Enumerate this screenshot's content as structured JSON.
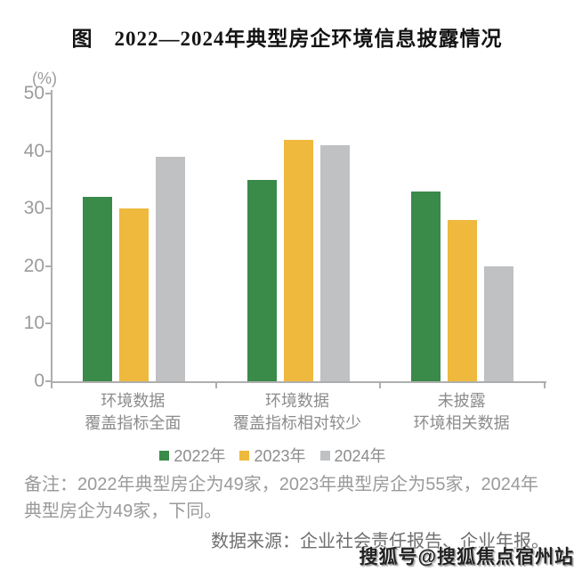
{
  "title": "图　2022—2024年典型房企环境信息披露情况",
  "chart_data": {
    "type": "bar",
    "title": "图　2022—2024年典型房企环境信息披露情况",
    "unit_label": "(%)",
    "categories": [
      "环境数据\n覆盖指标全面",
      "环境数据\n覆盖指标相对较少",
      "未披露\n环境相关数据"
    ],
    "series": [
      {
        "name": "2022年",
        "color": "#3a8a4a",
        "values": [
          32,
          35,
          33
        ]
      },
      {
        "name": "2023年",
        "color": "#eeb93d",
        "values": [
          30,
          42,
          28
        ]
      },
      {
        "name": "2024年",
        "color": "#bfc1c3",
        "values": [
          39,
          41,
          20
        ]
      }
    ],
    "ylim": [
      0,
      50
    ],
    "yticks": [
      0,
      10,
      20,
      30,
      40,
      50
    ],
    "grid": false,
    "legend_position": "bottom-center",
    "axis_color": "#aeaeae",
    "tick_label_color": "#9b9b9b",
    "category_label_color": "#8c8c8c"
  },
  "footnote": "备注：2022年典型房企为49家，2023年典型房企为55家，2024年典型房企为49家，下同。",
  "source": "数据来源：企业社会责任报告、企业年报。",
  "watermark": "搜狐号@搜狐焦点宿州站"
}
